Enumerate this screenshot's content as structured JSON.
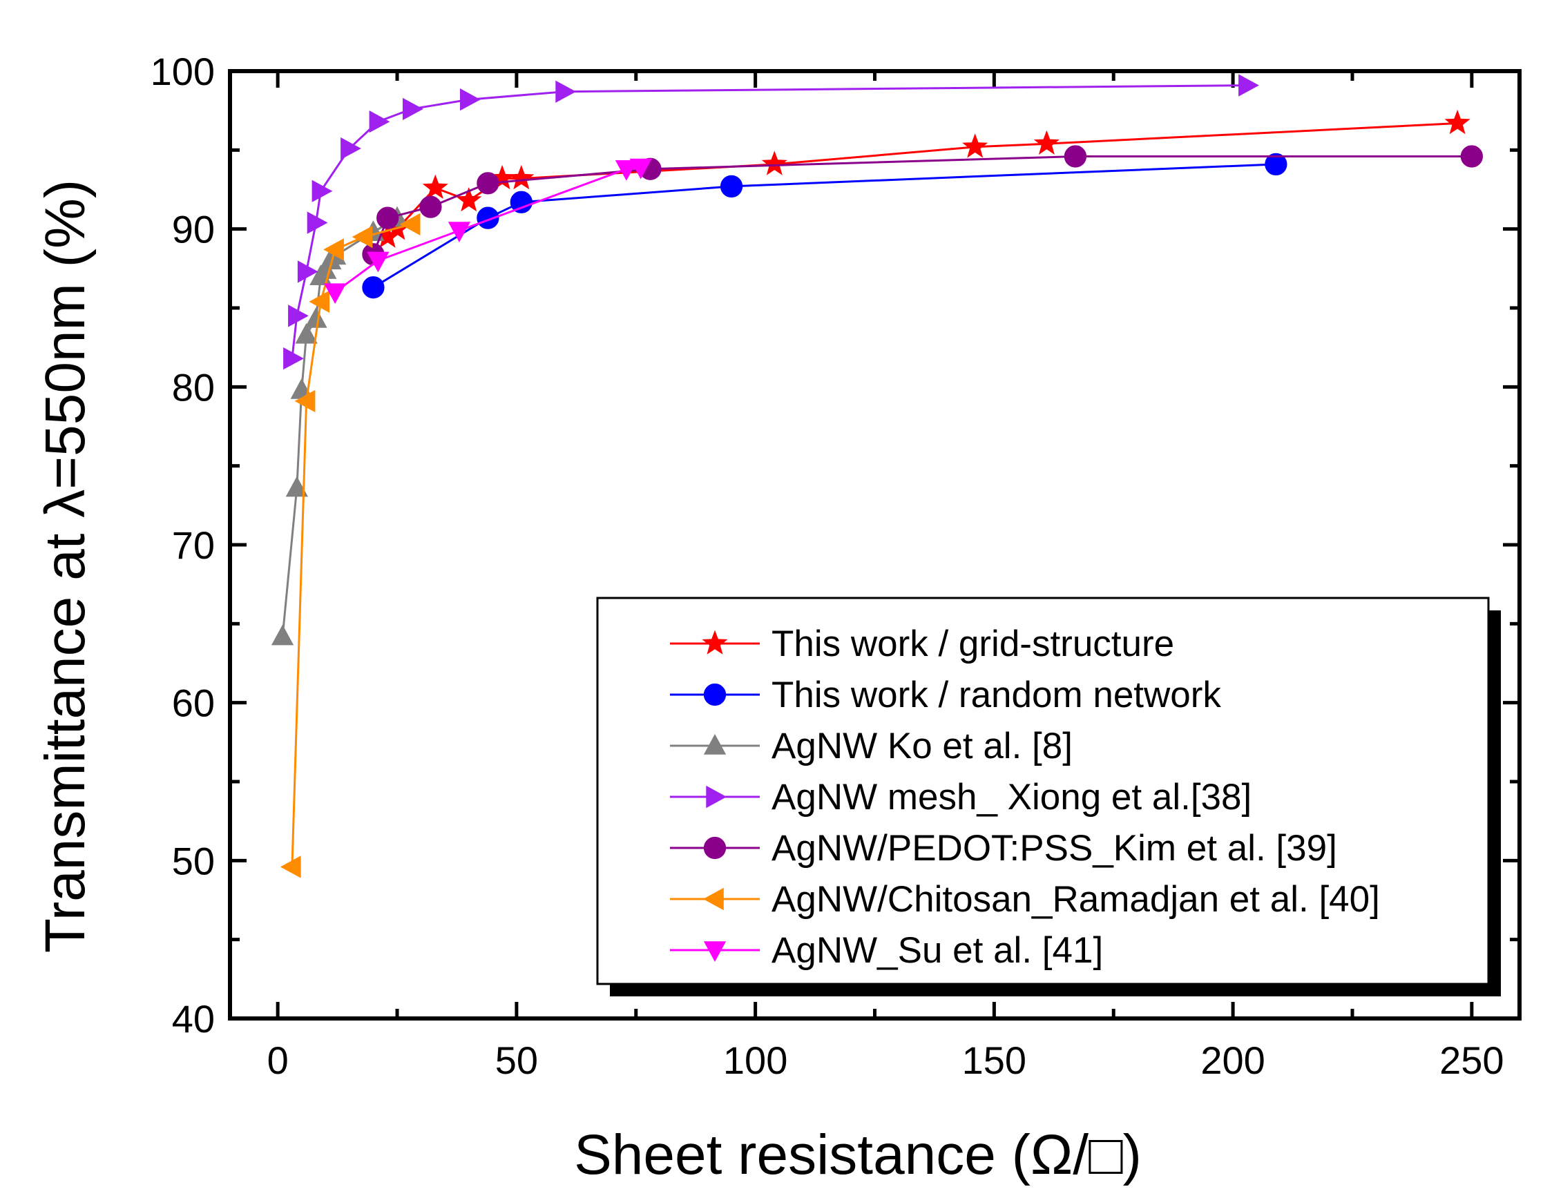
{
  "chart_data": {
    "type": "line",
    "title": "",
    "xlabel": "Sheet resistance (Ω/□)",
    "ylabel": "Transmittance at λ=550nm (%)",
    "xlim": [
      -10,
      260
    ],
    "ylim": [
      40,
      100
    ],
    "xticks": [
      0,
      50,
      100,
      150,
      200,
      250
    ],
    "yticks": [
      40,
      50,
      60,
      70,
      80,
      90,
      100
    ],
    "legend_position": "bottom-right",
    "series": [
      {
        "name": "This work / grid-structure",
        "color": "#ff0000",
        "marker": "star",
        "x": [
          23,
          25,
          33,
          40,
          47,
          51,
          104,
          146,
          161,
          247
        ],
        "y": [
          89.5,
          90.0,
          92.6,
          91.8,
          93.2,
          93.2,
          94.1,
          95.2,
          95.4,
          96.7
        ]
      },
      {
        "name": "This work / random network",
        "color": "#0000ff",
        "marker": "circle",
        "x": [
          20,
          44,
          51,
          95,
          209
        ],
        "y": [
          86.3,
          90.7,
          91.7,
          92.7,
          94.1
        ]
      },
      {
        "name": "AgNW Ko et al. [8]",
        "color": "#808080",
        "marker": "triangle-up",
        "x": [
          1,
          4,
          5,
          6,
          8,
          9,
          10,
          11,
          12,
          20,
          25
        ],
        "y": [
          64.2,
          73.6,
          79.8,
          83.3,
          84.3,
          87.0,
          87.4,
          88.0,
          88.3,
          89.8,
          90.7
        ]
      },
      {
        "name": "AgNW mesh_ Xiong et al.[38]",
        "color": "#a020f0",
        "marker": "triangle-right",
        "x": [
          3,
          4,
          6,
          8,
          9,
          15,
          21,
          28,
          40,
          60,
          203
        ],
        "y": [
          81.8,
          84.5,
          87.3,
          90.4,
          92.4,
          95.1,
          96.8,
          97.6,
          98.2,
          98.7,
          99.1
        ]
      },
      {
        "name": "AgNW/PEDOT:PSS_Kim et al. [39]",
        "color": "#8b008b",
        "marker": "circle",
        "x": [
          20,
          23,
          32,
          44,
          78,
          167,
          250
        ],
        "y": [
          88.4,
          90.7,
          91.4,
          92.9,
          93.8,
          94.6,
          94.6
        ]
      },
      {
        "name": "AgNW/Chitosan_Ramadjan et al. [40]",
        "color": "#ff8c00",
        "marker": "triangle-left",
        "x": [
          3,
          6,
          9,
          12,
          18,
          28
        ],
        "y": [
          49.6,
          79.1,
          85.4,
          88.7,
          89.5,
          90.3
        ]
      },
      {
        "name": "AgNW_Su et al. [41]",
        "color": "#ff00ff",
        "marker": "triangle-down",
        "x": [
          12,
          21,
          38,
          73,
          76
        ],
        "y": [
          86.0,
          88.0,
          89.9,
          93.8,
          93.9
        ]
      }
    ]
  }
}
